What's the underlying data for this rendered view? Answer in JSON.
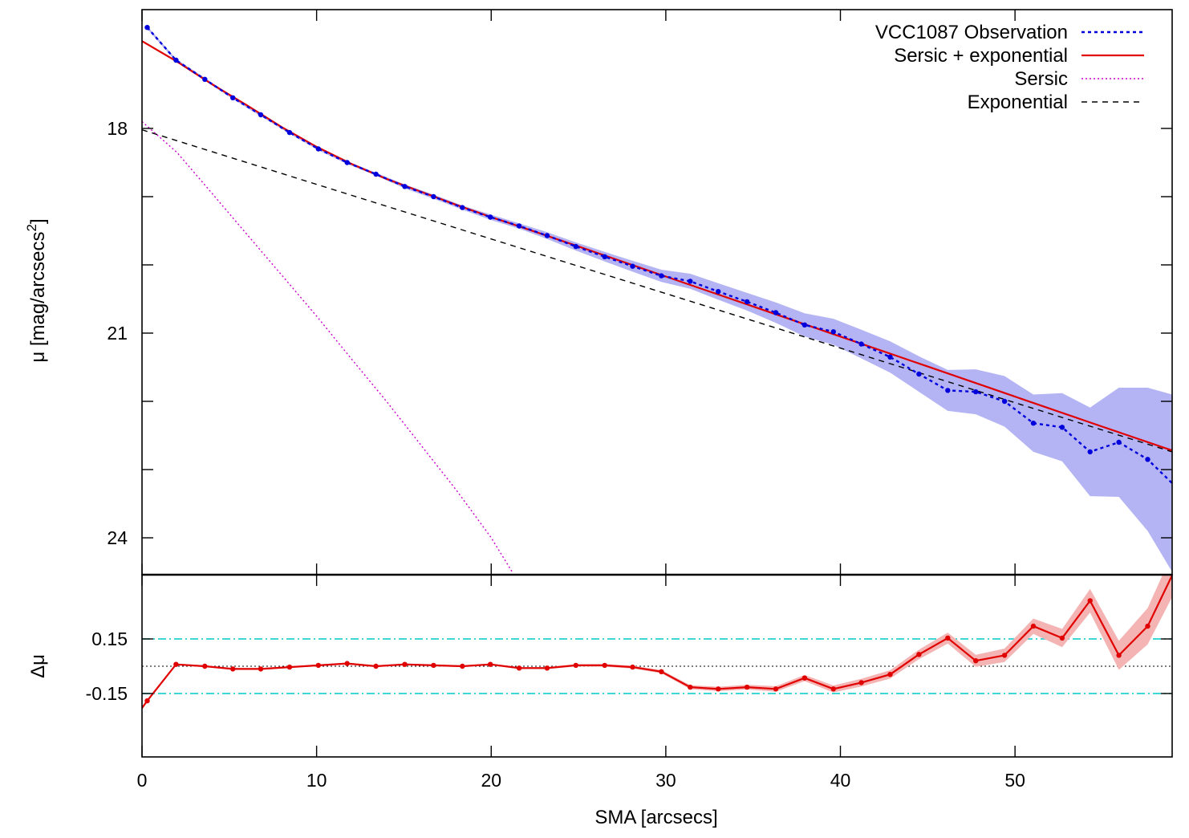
{
  "chart_data": [
    {
      "type": "line",
      "panel": "top",
      "title": "",
      "xlabel": "",
      "ylabel": "μ [mag/arcsecs",
      "ylabel_sup": "2",
      "ylabel_end": "]",
      "y_inverted": true,
      "xlim": [
        0,
        59
      ],
      "ylim": [
        16.5,
        24.5
      ],
      "yticks": [
        18,
        21,
        24
      ],
      "ytick_minor": [
        19,
        20,
        22,
        23
      ],
      "xticks": [
        0,
        10,
        20,
        30,
        40,
        50
      ],
      "legend_position": "top-right",
      "series": [
        {
          "name": "VCC1087 Observation",
          "color": "#0000dd",
          "band_color": "#b4b4f5",
          "style": "dotted-with-points",
          "x": [
            0.3,
            1.95,
            3.6,
            5.2,
            6.8,
            8.45,
            10.1,
            11.75,
            13.4,
            15.05,
            16.7,
            18.35,
            19.95,
            21.6,
            23.2,
            24.85,
            26.5,
            28.1,
            29.75,
            31.4,
            33.0,
            34.65,
            36.3,
            37.95,
            39.6,
            41.2,
            42.85,
            44.5,
            46.15,
            47.75,
            49.4,
            51.05,
            52.7,
            54.3,
            55.95,
            57.6,
            59.0
          ],
          "y": [
            16.52,
            17.0,
            17.28,
            17.55,
            17.8,
            18.06,
            18.3,
            18.5,
            18.67,
            18.85,
            19.0,
            19.16,
            19.3,
            19.43,
            19.57,
            19.73,
            19.88,
            20.02,
            20.16,
            20.24,
            20.39,
            20.54,
            20.7,
            20.88,
            20.98,
            21.16,
            21.35,
            21.6,
            21.84,
            21.86,
            22.0,
            22.32,
            22.38,
            22.74,
            22.6,
            22.85,
            23.2
          ],
          "err": [
            0.02,
            0.02,
            0.02,
            0.02,
            0.02,
            0.02,
            0.02,
            0.02,
            0.02,
            0.03,
            0.03,
            0.03,
            0.04,
            0.04,
            0.05,
            0.06,
            0.07,
            0.08,
            0.09,
            0.11,
            0.12,
            0.13,
            0.15,
            0.17,
            0.19,
            0.21,
            0.23,
            0.26,
            0.3,
            0.33,
            0.37,
            0.42,
            0.5,
            0.65,
            0.8,
            1.05,
            1.3
          ]
        },
        {
          "name": "Sersic + exponential",
          "color": "#e00000",
          "style": "solid",
          "x": [
            0,
            2,
            4,
            6,
            8,
            10,
            12,
            14,
            16,
            18,
            20,
            22,
            25,
            30,
            35,
            40,
            45,
            50,
            55,
            59
          ],
          "y": [
            16.72,
            17.02,
            17.35,
            17.66,
            17.98,
            18.27,
            18.52,
            18.74,
            18.93,
            19.12,
            19.3,
            19.47,
            19.73,
            20.17,
            20.61,
            21.05,
            21.49,
            21.93,
            22.37,
            22.72
          ]
        },
        {
          "name": "Sersic",
          "color": "#cc00cc",
          "style": "dotted",
          "x": [
            0,
            2,
            4,
            6,
            8,
            10,
            12,
            14,
            16,
            18,
            20,
            21.2
          ],
          "y": [
            17.9,
            18.35,
            18.95,
            19.55,
            20.15,
            20.75,
            21.38,
            22.0,
            22.65,
            23.3,
            24.0,
            24.5
          ]
        },
        {
          "name": "Exponential",
          "color": "#000000",
          "style": "dashed",
          "x": [
            0,
            59
          ],
          "y": [
            18.02,
            22.74
          ]
        }
      ]
    },
    {
      "type": "line",
      "panel": "bottom",
      "title": "",
      "xlabel": "SMA [arcsecs]",
      "ylabel": "Δμ",
      "xlim": [
        0,
        59
      ],
      "ylim": [
        -0.45,
        0.5
      ],
      "yticks": [
        0.15,
        -0.15
      ],
      "ytick_labels": [
        "0.15",
        "-0.15"
      ],
      "xticks": [
        0,
        10,
        20,
        30,
        40,
        50
      ],
      "reference_lines": {
        "zero": 0,
        "plus": 0.15,
        "minus": -0.15,
        "zero_color": "#000000",
        "band_line_color": "#00c8c8"
      },
      "series": [
        {
          "name": "",
          "color": "#e00000",
          "band_color": "#f5b4b4",
          "style": "solid-with-points",
          "x": [
            0,
            0.3,
            1.95,
            3.6,
            5.2,
            6.8,
            8.45,
            10.1,
            11.75,
            13.4,
            15.05,
            16.7,
            18.35,
            19.95,
            21.6,
            23.2,
            24.85,
            26.5,
            28.1,
            29.75,
            31.4,
            33.0,
            34.65,
            36.3,
            37.95,
            39.6,
            41.2,
            42.85,
            44.5,
            46.15,
            47.75,
            49.4,
            51.05,
            52.7,
            54.3,
            55.95,
            57.6,
            59.0
          ],
          "y": [
            -0.23,
            -0.19,
            0.01,
            0.0,
            -0.015,
            -0.015,
            -0.005,
            0.005,
            0.015,
            0.0,
            0.01,
            0.005,
            0.0,
            0.01,
            -0.01,
            -0.01,
            0.005,
            0.005,
            -0.005,
            -0.03,
            -0.115,
            -0.125,
            -0.115,
            -0.125,
            -0.065,
            -0.125,
            -0.09,
            -0.045,
            0.065,
            0.155,
            0.03,
            0.06,
            0.22,
            0.155,
            0.36,
            0.06,
            0.22,
            0.5
          ],
          "err": [
            0.005,
            0.005,
            0.005,
            0.005,
            0.005,
            0.005,
            0.005,
            0.005,
            0.005,
            0.005,
            0.005,
            0.005,
            0.005,
            0.005,
            0.005,
            0.006,
            0.006,
            0.007,
            0.008,
            0.009,
            0.011,
            0.012,
            0.013,
            0.015,
            0.017,
            0.019,
            0.021,
            0.023,
            0.026,
            0.03,
            0.033,
            0.037,
            0.042,
            0.05,
            0.065,
            0.08,
            0.1,
            0.12
          ]
        }
      ]
    }
  ]
}
